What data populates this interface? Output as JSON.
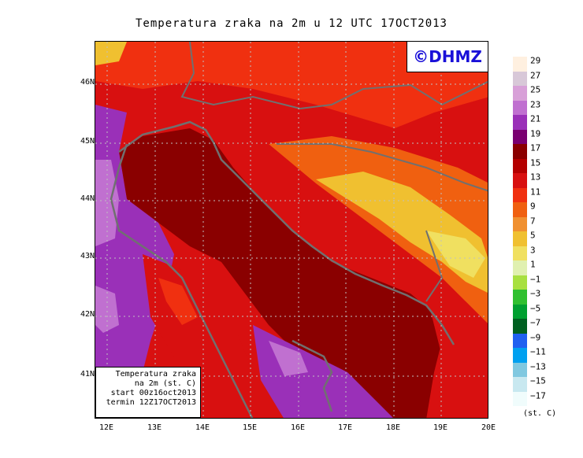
{
  "title": "Temperatura zraka na 2m u 12 UTC 17OCT2013",
  "logo": "©DHMZ",
  "info_box": {
    "line1": "Temperatura zraka",
    "line2": "na 2m (st. C)",
    "line3": "start 00z16oct2013",
    "line4": "termin 12Z17OCT2013"
  },
  "lat_labels": [
    "46N",
    "45N",
    "44N",
    "43N",
    "42N",
    "41N"
  ],
  "lon_labels": [
    "12E",
    "13E",
    "14E",
    "15E",
    "16E",
    "17E",
    "18E",
    "19E",
    "20E"
  ],
  "colorbar": {
    "unit": "(st. C)",
    "labels": [
      "29",
      "27",
      "25",
      "23",
      "21",
      "19",
      "17",
      "15",
      "13",
      "11",
      "9",
      "7",
      "5",
      "3",
      "1",
      "−1",
      "−3",
      "−5",
      "−7",
      "−9",
      "−11",
      "−13",
      "−15",
      "−17"
    ],
    "colors": [
      "#fff0e0",
      "#d8c8d8",
      "#d8a0d8",
      "#c070d0",
      "#9a30b8",
      "#7a0070",
      "#8a0000",
      "#b40000",
      "#d81010",
      "#f03010",
      "#f06010",
      "#f09030",
      "#f0c030",
      "#f0e060",
      "#e0f0b0",
      "#a8e040",
      "#30c030",
      "#00a030",
      "#006020",
      "#2060f0",
      "#00a0f0",
      "#80c8e0",
      "#c8e8f0",
      "#f0fcfc"
    ]
  },
  "colors": {
    "sea_dark_red": "#8a0000",
    "coast_line": "#707070",
    "purple": "#9a30b8",
    "light_purple": "#c070d0",
    "red": "#d81010",
    "orange": "#f06010",
    "yellow": "#f0c030"
  }
}
